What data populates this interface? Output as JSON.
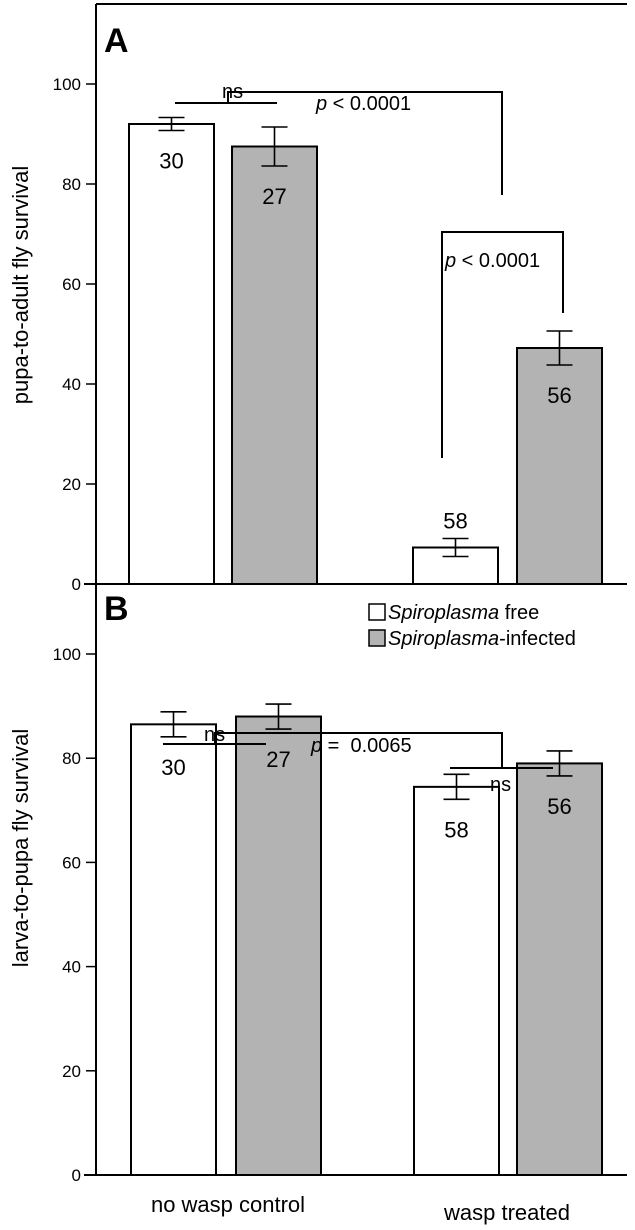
{
  "legend": [
    {
      "label_italic": "Spiroplasma",
      "label_rest": " free",
      "color": "#ffffff"
    },
    {
      "label_italic": "Spiroplasma",
      "label_rest": "-infected",
      "color": "#b3b3b3"
    }
  ],
  "chart_data": [
    {
      "panel": "A",
      "type": "bar",
      "ylabel": "pupa-to-adult fly survival",
      "ylim": [
        0,
        110
      ],
      "yticks": [
        0,
        20,
        40,
        60,
        80,
        100
      ],
      "groups": [
        "no wasp control",
        "wasp treated"
      ],
      "series": [
        {
          "name": "Spiroplasma free",
          "color": "#ffffff",
          "values": [
            92,
            7.3
          ],
          "errors": [
            1.3,
            1.8
          ],
          "n_labels": [
            "30",
            "58"
          ]
        },
        {
          "name": "Spiroplasma-infected",
          "color": "#b3b3b3",
          "values": [
            87.5,
            47.2
          ],
          "errors": [
            3.9,
            3.4
          ],
          "n_labels": [
            "27",
            "56"
          ]
        }
      ],
      "annotations": [
        {
          "text": "ns",
          "p_italic": false
        },
        {
          "p_italic": true,
          "text": " < 0.0001"
        },
        {
          "p_italic": true,
          "text": " < 0.0001"
        }
      ]
    },
    {
      "panel": "B",
      "type": "bar",
      "ylabel": "larva-to-pupa fly survival",
      "ylim": [
        0,
        115
      ],
      "yticks": [
        0,
        20,
        40,
        60,
        80,
        100
      ],
      "groups": [
        "no wasp control",
        "wasp treated"
      ],
      "series": [
        {
          "name": "Spiroplasma free",
          "color": "#ffffff",
          "values": [
            86.5,
            74.5
          ],
          "errors": [
            2.4,
            2.4
          ],
          "n_labels": [
            "30",
            "58"
          ]
        },
        {
          "name": "Spiroplasma-infected",
          "color": "#b3b3b3",
          "values": [
            88,
            79
          ],
          "errors": [
            2.4,
            2.4
          ],
          "n_labels": [
            "27",
            "56"
          ]
        }
      ],
      "annotations": [
        {
          "text": "ns",
          "p_italic": false
        },
        {
          "p_italic": true,
          "text": " =  0.0065"
        },
        {
          "text": "ns",
          "p_italic": false
        }
      ]
    }
  ]
}
